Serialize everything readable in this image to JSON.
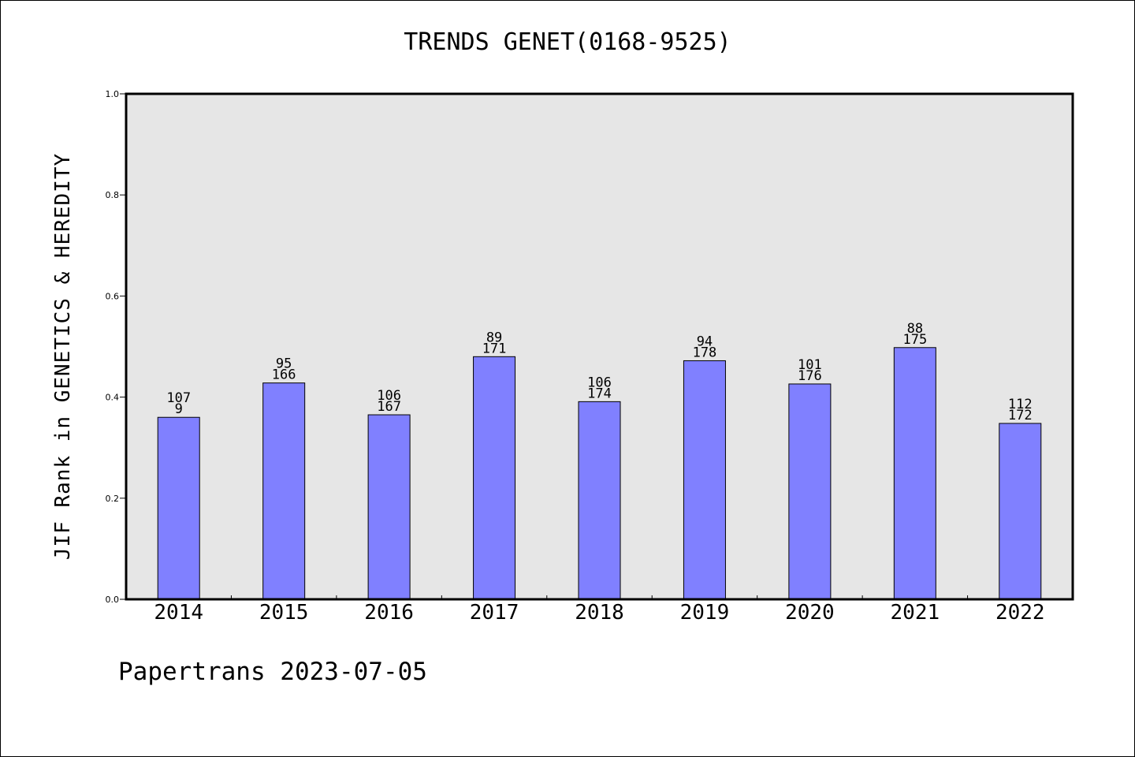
{
  "chart_data": {
    "type": "bar",
    "title": "TRENDS GENET(0168-9525)",
    "ylabel": "JIF Rank in GENETICS & HEREDITY",
    "xlabel": "",
    "ylim": [
      0,
      1.0
    ],
    "yticks": [
      "0.0",
      "0.2",
      "0.4",
      "0.6",
      "0.8",
      "1.0"
    ],
    "grid": false,
    "categories": [
      "2014",
      "2015",
      "2016",
      "2017",
      "2018",
      "2019",
      "2020",
      "2021",
      "2022"
    ],
    "values": [
      0.36,
      0.428,
      0.365,
      0.48,
      0.391,
      0.472,
      0.426,
      0.498,
      0.348
    ],
    "labels_top": [
      "107",
      "95",
      "106",
      "89",
      "106",
      "94",
      "101",
      "88",
      "112"
    ],
    "labels_bottom": [
      "9",
      "166",
      "167",
      "171",
      "174",
      "178",
      "176",
      "175",
      "172"
    ],
    "colors": {
      "bar": "#8080ff",
      "plot_bg": "#e6e6e6"
    }
  },
  "footer": "Papertrans 2023-07-05"
}
